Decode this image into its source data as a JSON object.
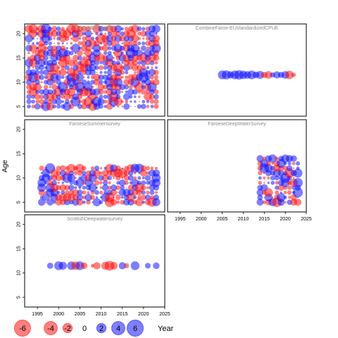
{
  "chart_data": {
    "type": "scatter",
    "subtype": "bubble-residuals",
    "ylabel": "Age",
    "xlabel": "Year",
    "xlim": [
      1992,
      2025
    ],
    "ylim": [
      3,
      22
    ],
    "x_ticks": [
      1995,
      2000,
      2005,
      2010,
      2015,
      2020,
      2025
    ],
    "y_ticks": [
      5,
      10,
      15,
      20
    ],
    "colors": {
      "negative": "#ff0000",
      "positive": "#0000ff",
      "frame": "#000000",
      "title": "#8a8a8a"
    },
    "legend": {
      "position": "bottom-left",
      "entries": [
        {
          "label": "-6",
          "value": -6
        },
        {
          "label": "-4",
          "value": -4
        },
        {
          "label": "-2",
          "value": -2
        },
        {
          "label": "0",
          "value": 0
        },
        {
          "label": "2",
          "value": 2
        },
        {
          "label": "4",
          "value": 4
        },
        {
          "label": "6",
          "value": 6
        }
      ]
    },
    "panels": [
      {
        "title": "Roundfish catch",
        "years": [
          1993,
          2023
        ],
        "ages": [
          5,
          21
        ],
        "pattern": "dense grid of positive and negative residuals across all ages and years"
      },
      {
        "title": "CombineFaroe-EUstandardizedCPUE",
        "points": [
          {
            "x": 2005,
            "y": 11.5,
            "r": 1.2
          },
          {
            "x": 2006,
            "y": 11.5,
            "r": 1.3
          },
          {
            "x": 2007,
            "y": 11.5,
            "r": 0.8
          },
          {
            "x": 2008,
            "y": 11.5,
            "r": 1.2
          },
          {
            "x": 2009,
            "y": 11.5,
            "r": 1.4
          },
          {
            "x": 2010,
            "y": 11.5,
            "r": 1.1
          },
          {
            "x": 2011,
            "y": 11.5,
            "r": 0.9
          },
          {
            "x": 2012,
            "y": 11.5,
            "r": 1.2
          },
          {
            "x": 2013,
            "y": 11.5,
            "r": 0.7
          },
          {
            "x": 2014,
            "y": 11.5,
            "r": 1.0
          },
          {
            "x": 2015,
            "y": 11.5,
            "r": -0.6
          },
          {
            "x": 2016,
            "y": 11.5,
            "r": -0.9
          },
          {
            "x": 2017,
            "y": 11.5,
            "r": 0.4
          },
          {
            "x": 2018,
            "y": 11.5,
            "r": 0.8
          },
          {
            "x": 2019,
            "y": 11.5,
            "r": 0.6
          },
          {
            "x": 2020,
            "y": 11.5,
            "r": 0.9
          },
          {
            "x": 2021,
            "y": 11.5,
            "r": -1.1
          },
          {
            "x": 2022,
            "y": 11.5,
            "r": -0.3
          }
        ]
      },
      {
        "title": "FaroeseSummersurvey",
        "years": [
          1996,
          2023
        ],
        "ages": [
          5,
          12
        ],
        "pattern": "mixed residuals, larger bubbles in late years"
      },
      {
        "title": "FaroeseDeepWaterSurvey",
        "years": [
          2014,
          2023
        ],
        "ages": [
          5,
          14
        ],
        "pattern": "mixed residuals from 2014 onward"
      },
      {
        "title": "ScottishDeepwatersurvey",
        "points": [
          {
            "x": 1998,
            "y": 11.5,
            "r": 0.6
          },
          {
            "x": 2000,
            "y": 11.5,
            "r": 1.2
          },
          {
            "x": 2001,
            "y": 11.5,
            "r": 1.0
          },
          {
            "x": 2003,
            "y": 11.5,
            "r": 1.1
          },
          {
            "x": 2004,
            "y": 11.5,
            "r": -1.1
          },
          {
            "x": 2005,
            "y": 11.5,
            "r": 1.2
          },
          {
            "x": 2006,
            "y": 11.5,
            "r": -0.7
          },
          {
            "x": 2008,
            "y": 11.5,
            "r": -0.2
          },
          {
            "x": 2009,
            "y": 11.5,
            "r": -0.8
          },
          {
            "x": 2011,
            "y": 11.5,
            "r": -1.0
          },
          {
            "x": 2012,
            "y": 11.5,
            "r": -1.5
          },
          {
            "x": 2013,
            "y": 11.5,
            "r": -0.9
          },
          {
            "x": 2015,
            "y": 11.5,
            "r": 0.8
          },
          {
            "x": 2016,
            "y": 11.5,
            "r": -0.4
          },
          {
            "x": 2018,
            "y": 11.5,
            "r": 1.2
          },
          {
            "x": 2021,
            "y": 11.5,
            "r": 0.5
          },
          {
            "x": 2023,
            "y": 11.5,
            "r": 0.7
          }
        ]
      }
    ]
  }
}
